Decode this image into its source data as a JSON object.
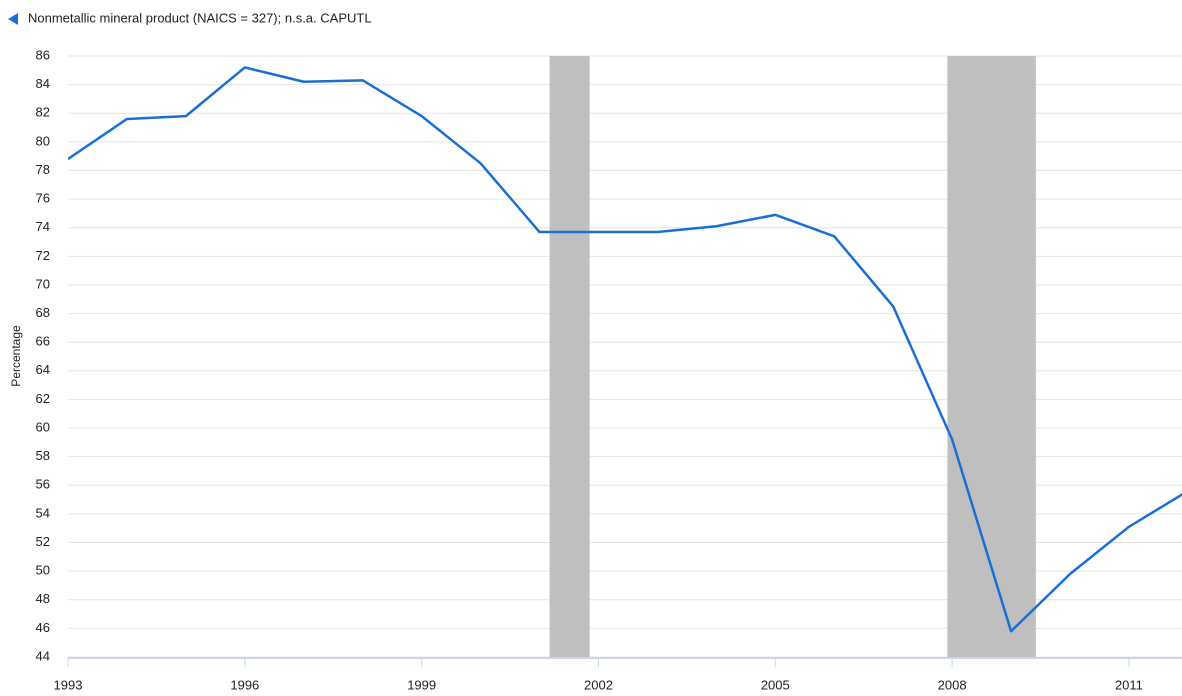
{
  "chart_data": {
    "type": "line",
    "title": "Nonmetallic mineral product  (NAICS = 327); n.s.a. CAPUTL",
    "y_label": "Percentage",
    "x": [
      1993,
      1994,
      1995,
      1996,
      1997,
      1998,
      1999,
      2000,
      2001,
      2002,
      2003,
      2004,
      2005,
      2006,
      2007,
      2008,
      2009,
      2010,
      2011,
      2012
    ],
    "series": [
      {
        "name": "Nonmetallic mineral product",
        "color": "#1a6fd4",
        "values": [
          78.8,
          81.6,
          81.8,
          85.2,
          84.2,
          84.3,
          81.8,
          78.5,
          73.7,
          73.7,
          73.7,
          74.1,
          74.9,
          73.4,
          68.5,
          59.2,
          45.8,
          49.8,
          53.1,
          55.6
        ]
      }
    ],
    "recessions": [
      [
        2001.17,
        2001.85
      ],
      [
        2007.92,
        2009.42
      ]
    ],
    "recession_color": "#bfbfbf",
    "xlim": [
      1993,
      2011.9
    ],
    "xticks": [
      1993,
      1996,
      1999,
      2002,
      2005,
      2008,
      2011
    ],
    "ylim": [
      44,
      86
    ],
    "yticks": [
      44,
      46,
      48,
      50,
      52,
      54,
      56,
      58,
      60,
      62,
      64,
      66,
      68,
      70,
      72,
      74,
      76,
      78,
      80,
      82,
      84,
      86
    ],
    "grid": true
  }
}
